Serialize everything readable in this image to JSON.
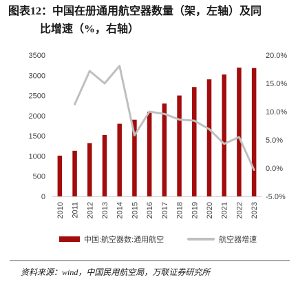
{
  "title": {
    "line1": "图表12：中国在册通用航空器数量（架，左轴）及同",
    "line2": "比增速（%，右轴）"
  },
  "source": "资料来源：wind，中国民用航空局，万联证券研究所",
  "colors": {
    "bar": "#a30c0c",
    "line": "#bfbfbf",
    "axis": "#bfbfbf",
    "text": "#404040"
  },
  "chart_data": {
    "type": "bar",
    "categories": [
      "2010",
      "2011",
      "2012",
      "2013",
      "2014",
      "2015",
      "2016",
      "2017",
      "2018",
      "2019",
      "2020",
      "2021",
      "2022",
      "2023"
    ],
    "series": [
      {
        "name": "中国:航空器数:通用航空",
        "type": "bar",
        "axis": "left",
        "values": [
          1010,
          1130,
          1320,
          1520,
          1800,
          1900,
          2100,
          2300,
          2500,
          2710,
          2900,
          3020,
          3190,
          3180
        ]
      },
      {
        "name": "航空器增速",
        "type": "line",
        "axis": "right",
        "values": [
          11.3,
          17.2,
          15.0,
          18.1,
          5.8,
          10.0,
          9.6,
          8.6,
          8.4,
          6.9,
          4.3,
          5.5,
          -0.3
        ],
        "x": [
          "2011",
          "2012",
          "2013",
          "2014",
          "2015",
          "2016",
          "2017",
          "2018",
          "2019",
          "2020",
          "2021",
          "2022",
          "2023"
        ]
      }
    ],
    "left_axis": {
      "min": 0,
      "max": 3500,
      "ticks": [
        "0",
        "500",
        "1000",
        "1500",
        "2000",
        "2500",
        "3000",
        "3500"
      ]
    },
    "right_axis": {
      "min": -5,
      "max": 20,
      "ticks": [
        "-5.0%",
        "0.0%",
        "5.0%",
        "10.0%",
        "15.0%",
        "20.0%"
      ]
    },
    "legend_position": "bottom",
    "grid": false
  }
}
